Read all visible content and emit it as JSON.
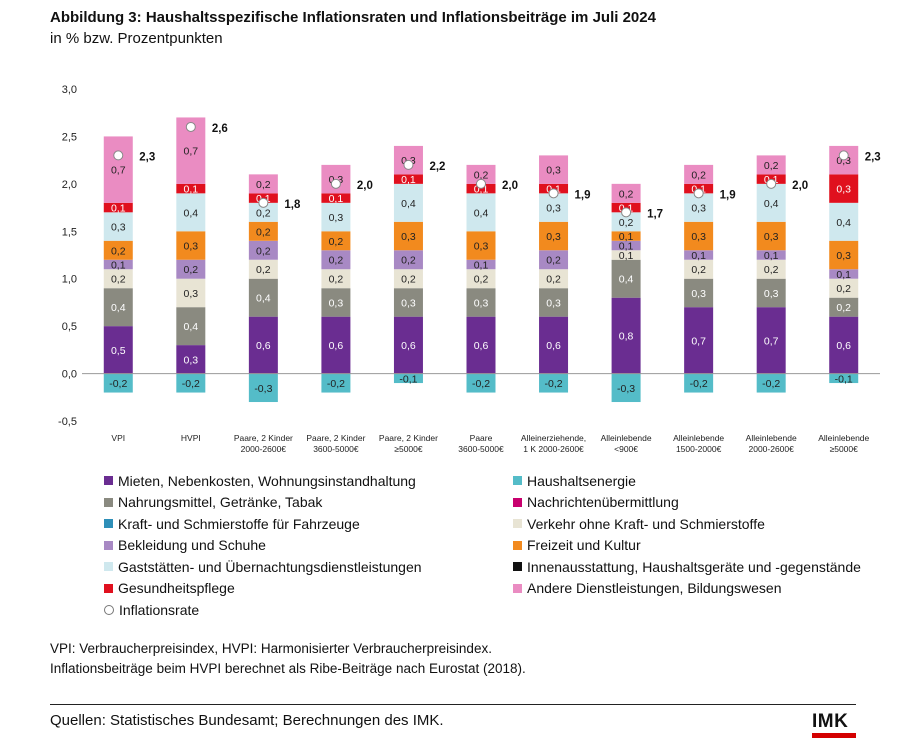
{
  "header": {
    "title": "Abbildung 3: Haushaltsspezifische Inflationsraten und Inflationsbeiträge im Juli 2024",
    "subtitle": "in % bzw. Prozentpunkten"
  },
  "chart_data": {
    "type": "stacked-bar",
    "yticks": [
      "3,0",
      "2,5",
      "2,0",
      "1,5",
      "1,0",
      "0,5",
      "0,0",
      "-0,5"
    ],
    "ylim": [
      -0.5,
      3.0
    ],
    "categories": [
      [
        "VPI"
      ],
      [
        "HVPI"
      ],
      [
        "Paare, 2 Kinder",
        "2000-2600€"
      ],
      [
        "Paare, 2 Kinder",
        "3600-5000€"
      ],
      [
        "Paare, 2 Kinder",
        "≥5000€"
      ],
      [
        "Paare",
        "3600-5000€"
      ],
      [
        "Alleinerziehende,",
        "1 K 2000-2600€"
      ],
      [
        "Alleinlebende",
        "<900€"
      ],
      [
        "Alleinlebende",
        "1500-2000€"
      ],
      [
        "Alleinlebende",
        "2000-2600€"
      ],
      [
        "Alleinlebende",
        "≥5000€"
      ]
    ],
    "series": [
      {
        "name": "Mieten, Nebenkosten, Wohnungsinstandhaltung",
        "color": "#6a2d91",
        "labels": true,
        "values": [
          0.5,
          0.3,
          0.6,
          0.6,
          0.6,
          0.6,
          0.6,
          0.8,
          0.7,
          0.7,
          0.6
        ]
      },
      {
        "name": "Nahrungsmittel, Getränke, Tabak",
        "color": "#8a8a80",
        "labels": true,
        "values": [
          0.4,
          0.4,
          0.4,
          0.3,
          0.3,
          0.3,
          0.3,
          0.4,
          0.3,
          0.3,
          0.2
        ]
      },
      {
        "name": "Verkehr ohne Kraft- und Schmierstoffe",
        "color": "#e8e4d4",
        "labels": true,
        "values": [
          0.2,
          0.3,
          0.2,
          0.2,
          0.2,
          0.2,
          0.2,
          0.1,
          0.2,
          0.2,
          0.2
        ]
      },
      {
        "name": "Bekleidung und Schuhe",
        "color": "#a889c4",
        "labels": true,
        "values": [
          0.1,
          0.2,
          0.2,
          0.2,
          0.2,
          0.1,
          0.2,
          0.1,
          0.1,
          0.1,
          0.1
        ]
      },
      {
        "name": "Freizeit und Kultur",
        "color": "#f28a1e",
        "labels": true,
        "values": [
          0.2,
          0.3,
          0.2,
          0.2,
          0.3,
          0.3,
          0.3,
          0.1,
          0.3,
          0.3,
          0.3
        ]
      },
      {
        "name": "Gaststätten- und Übernachtungsdienstleistungen",
        "color": "#cfe8ee",
        "labels": true,
        "values": [
          0.3,
          0.4,
          0.2,
          0.3,
          0.4,
          0.4,
          0.3,
          0.2,
          0.3,
          0.4,
          0.4
        ]
      },
      {
        "name": "Gesundheitspflege",
        "color": "#e0101e",
        "labels": true,
        "values": [
          0.1,
          0.1,
          0.1,
          0.1,
          0.1,
          0.1,
          0.1,
          0.1,
          0.1,
          0.1,
          0.3
        ]
      },
      {
        "name": "Andere Dienstleistungen, Bildungswesen",
        "color": "#ea8cc2",
        "labels": true,
        "values": [
          0.7,
          0.7,
          0.2,
          0.3,
          0.3,
          0.2,
          0.3,
          0.2,
          0.2,
          0.2,
          0.3
        ]
      },
      {
        "name": "Haushaltsenergie",
        "color": "#54bcc8",
        "labels": true,
        "values": [
          -0.2,
          -0.2,
          -0.3,
          -0.2,
          -0.1,
          -0.2,
          -0.2,
          -0.3,
          -0.2,
          -0.2,
          -0.1
        ]
      }
    ],
    "inflation_rate": {
      "name": "Inflationsrate",
      "values": [
        2.3,
        2.6,
        1.8,
        2.0,
        2.2,
        2.0,
        1.9,
        1.7,
        1.9,
        2.0,
        2.3
      ],
      "labels": [
        "2,3",
        "2,6",
        "1,8",
        "2,0",
        "2,2",
        "2,0",
        "1,9",
        "1,7",
        "1,9",
        "2,0",
        "2,3"
      ]
    }
  },
  "legend": {
    "left": [
      {
        "label": "Mieten, Nebenkosten, Wohnungsinstandhaltung",
        "color": "#6a2d91",
        "shape": "square"
      },
      {
        "label": "Nahrungsmittel, Getränke, Tabak",
        "color": "#8a8a80",
        "shape": "square"
      },
      {
        "label": "Kraft- und Schmierstoffe für Fahrzeuge",
        "color": "#2e8fb8",
        "shape": "square"
      },
      {
        "label": "Bekleidung und Schuhe",
        "color": "#a889c4",
        "shape": "square"
      },
      {
        "label": "Gaststätten- und Übernachtungsdienstleistungen",
        "color": "#cfe8ee",
        "shape": "square"
      },
      {
        "label": "Gesundheitspflege",
        "color": "#e0101e",
        "shape": "square"
      },
      {
        "label": "Inflationsrate",
        "color": "#ffffff",
        "shape": "circle"
      }
    ],
    "right": [
      {
        "label": "Haushaltsenergie",
        "color": "#54bcc8",
        "shape": "square"
      },
      {
        "label": "Nachrichtenübermittlung",
        "color": "#c8006e",
        "shape": "square"
      },
      {
        "label": "Verkehr ohne Kraft- und Schmierstoffe",
        "color": "#e8e4d4",
        "shape": "square"
      },
      {
        "label": "Freizeit und Kultur",
        "color": "#f28a1e",
        "shape": "square"
      },
      {
        "label": "Innenausstattung, Haushaltsgeräte und -gegenstände",
        "color": "#111111",
        "shape": "square"
      },
      {
        "label": "Andere Dienstleistungen, Bildungswesen",
        "color": "#ea8cc2",
        "shape": "square"
      }
    ]
  },
  "notes": {
    "line1": "VPI: Verbraucherpreisindex, HVPI: Harmonisierter Verbraucherpreisindex.",
    "line2": "Inflationsbeiträge beim HVPI berechnet als Ribe-Beiträge nach Eurostat (2018)."
  },
  "footer": {
    "source": "Quellen: Statistisches Bundesamt; Berechnungen des IMK.",
    "logo_text": "IMK"
  }
}
